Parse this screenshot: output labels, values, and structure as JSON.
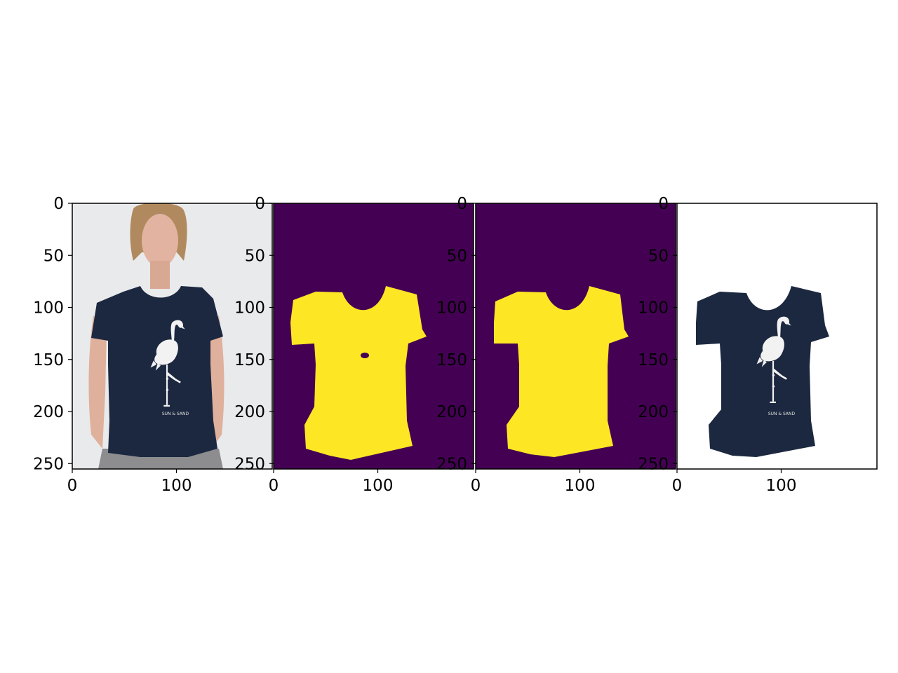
{
  "figure": {
    "panels": [
      {
        "content": "photo",
        "x_ticks": [
          "0",
          "100"
        ],
        "y_ticks": [
          "0",
          "50",
          "100",
          "150",
          "200",
          "250"
        ]
      },
      {
        "content": "mask-raw",
        "x_ticks": [
          "0",
          "100"
        ],
        "y_ticks": [
          "0",
          "50",
          "100",
          "150",
          "200",
          "250"
        ]
      },
      {
        "content": "mask-clean",
        "x_ticks": [
          "0",
          "100"
        ],
        "y_ticks": [
          "0",
          "50",
          "100",
          "150",
          "200",
          "250"
        ]
      },
      {
        "content": "cutout",
        "x_ticks": [
          "0",
          "100"
        ],
        "y_ticks": [
          "0",
          "50",
          "100",
          "150",
          "200",
          "250"
        ]
      }
    ],
    "print_text": "SUN & SAND"
  },
  "colors": {
    "mask_background": "#440154",
    "mask_foreground": "#fde725",
    "shirt_navy": "#1c2840",
    "photo_background": "#e9eaec",
    "skin": "#e2b3a0",
    "hair": "#b08a5e",
    "pants_gray": "#8d8d8f",
    "flamingo_white": "#f2f2f2"
  }
}
